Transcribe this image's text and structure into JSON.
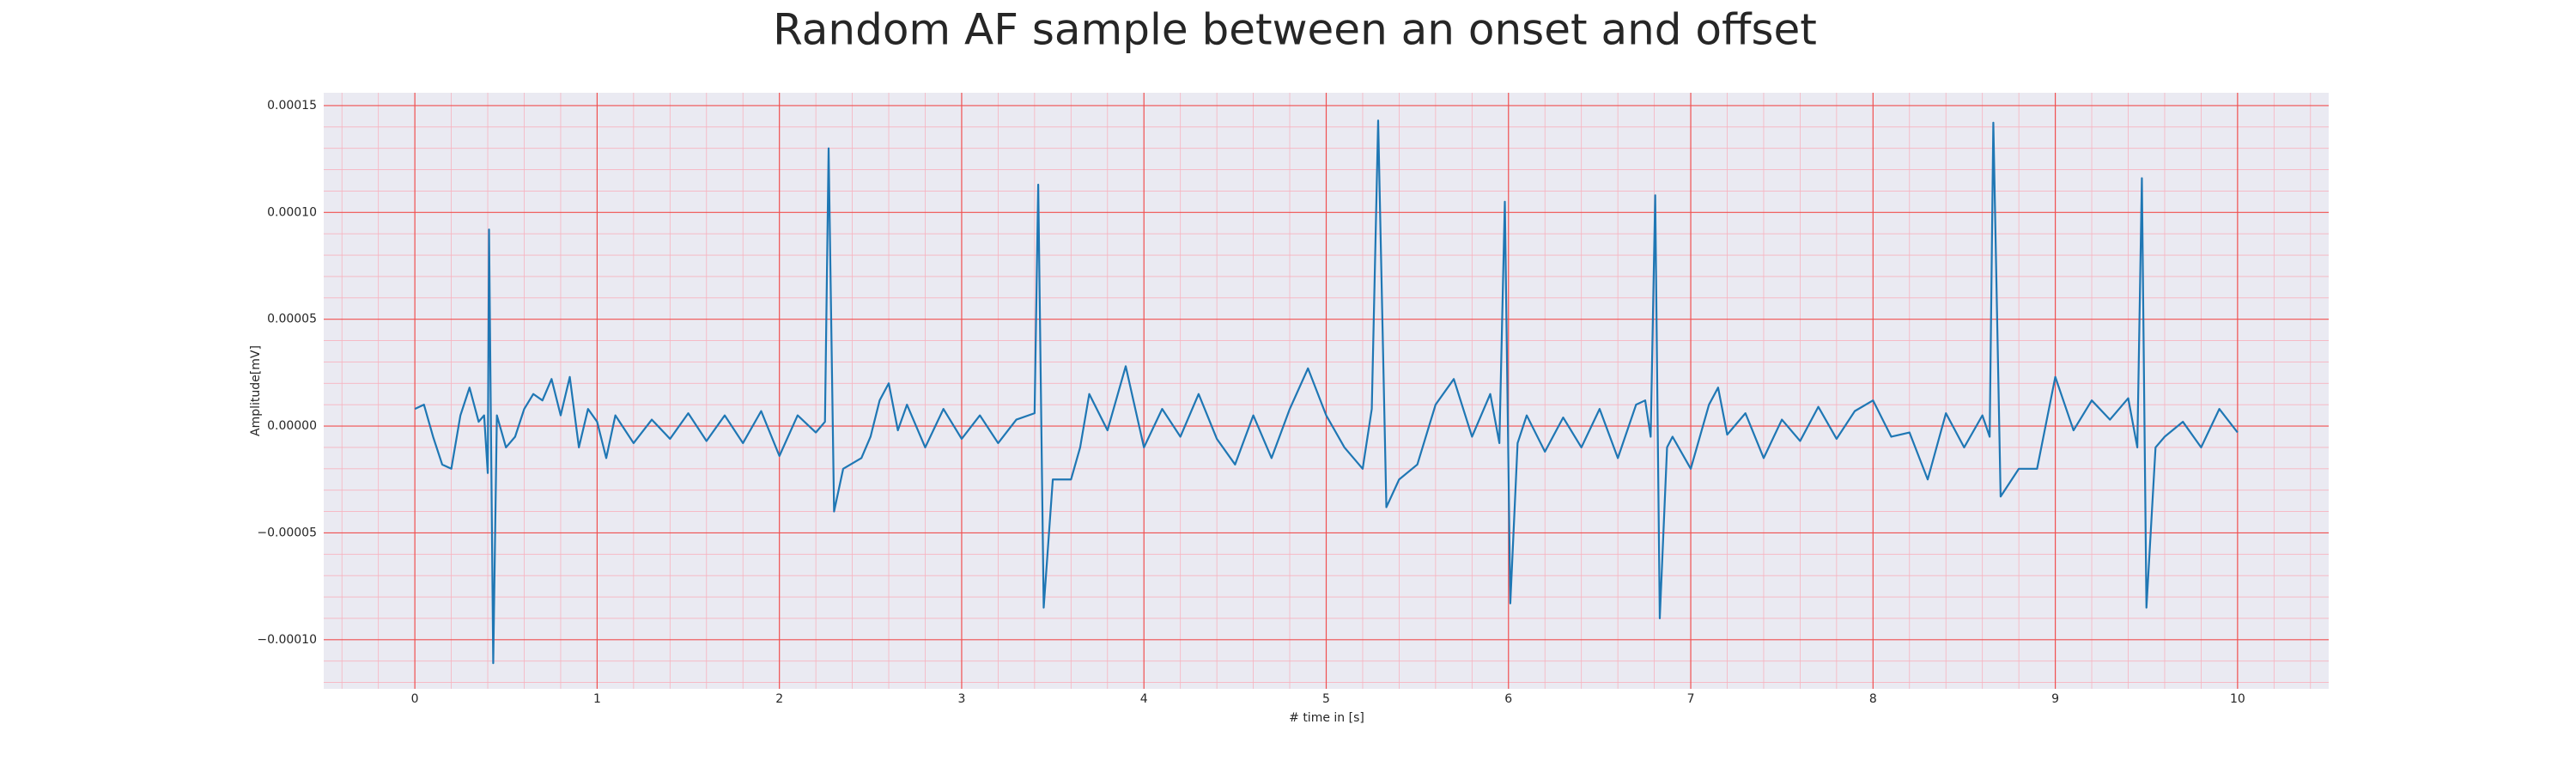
{
  "chart_data": {
    "type": "line",
    "title": "Random AF sample between an onset and offset",
    "x_label": "# time in [s]",
    "y_label": "Amplitude[mV]",
    "color": "#1f77b4",
    "background": "#eaeaf2",
    "grid": true,
    "grid_color": "#f05050",
    "minor_grid_color": "#f7b3bf",
    "xlim": [
      -0.5,
      10.5
    ],
    "ylim": [
      -0.000123,
      0.000156
    ],
    "xticks": [
      0,
      1,
      2,
      3,
      4,
      5,
      6,
      7,
      8,
      9,
      10
    ],
    "yticks": [
      {
        "value": -0.0001,
        "label": "−0.00010"
      },
      {
        "value": -5e-05,
        "label": "−0.00005"
      },
      {
        "value": 0,
        "label": "0.00000"
      },
      {
        "value": 5e-05,
        "label": "0.00005"
      },
      {
        "value": 0.0001,
        "label": "0.00010"
      },
      {
        "value": 0.00015,
        "label": "0.00015"
      }
    ],
    "xminorticks": [
      -0.4,
      -0.2,
      0.2,
      0.4,
      0.6,
      0.8,
      1.2,
      1.4,
      1.6,
      1.8,
      2.2,
      2.4,
      2.6,
      2.8,
      3.2,
      3.4,
      3.6,
      3.8,
      4.2,
      4.4,
      4.6,
      4.8,
      5.2,
      5.4,
      5.6,
      5.8,
      6.2,
      6.4,
      6.6,
      6.8,
      7.2,
      7.4,
      7.6,
      7.8,
      8.2,
      8.4,
      8.6,
      8.8,
      9.2,
      9.4,
      9.6,
      9.8,
      10.2,
      10.4
    ],
    "yminorticks": [
      -0.00012,
      -0.00011,
      -9e-05,
      -8e-05,
      -7e-05,
      -6e-05,
      -4e-05,
      -3e-05,
      -2e-05,
      -1e-05,
      1e-05,
      2e-05,
      3e-05,
      4e-05,
      6e-05,
      7e-05,
      8e-05,
      9e-05,
      0.00011,
      0.00012,
      0.00013,
      0.00014
    ],
    "x": [
      0,
      0.05,
      0.1,
      0.15,
      0.2,
      0.25,
      0.3,
      0.35,
      0.38,
      0.4,
      0.407,
      0.43,
      0.45,
      0.5,
      0.55,
      0.6,
      0.65,
      0.7,
      0.75,
      0.8,
      0.85,
      0.9,
      0.95,
      1.0,
      1.05,
      1.1,
      1.2,
      1.3,
      1.4,
      1.5,
      1.6,
      1.7,
      1.8,
      1.9,
      2.0,
      2.1,
      2.2,
      2.25,
      2.27,
      2.3,
      2.35,
      2.45,
      2.5,
      2.55,
      2.6,
      2.65,
      2.7,
      2.8,
      2.9,
      3.0,
      3.1,
      3.2,
      3.3,
      3.4,
      3.42,
      3.45,
      3.5,
      3.6,
      3.65,
      3.7,
      3.8,
      3.9,
      4.0,
      4.1,
      4.2,
      4.3,
      4.4,
      4.5,
      4.6,
      4.7,
      4.8,
      4.9,
      5.0,
      5.1,
      5.2,
      5.25,
      5.285,
      5.33,
      5.4,
      5.5,
      5.6,
      5.7,
      5.8,
      5.9,
      5.95,
      5.98,
      6.01,
      6.05,
      6.1,
      6.2,
      6.3,
      6.4,
      6.5,
      6.6,
      6.7,
      6.75,
      6.78,
      6.805,
      6.83,
      6.87,
      6.9,
      7.0,
      7.1,
      7.15,
      7.2,
      7.3,
      7.4,
      7.5,
      7.6,
      7.7,
      7.8,
      7.9,
      8.0,
      8.1,
      8.2,
      8.3,
      8.4,
      8.5,
      8.6,
      8.64,
      8.66,
      8.7,
      8.8,
      8.9,
      9.0,
      9.1,
      9.2,
      9.3,
      9.4,
      9.45,
      9.475,
      9.5,
      9.55,
      9.6,
      9.7,
      9.8,
      9.9,
      10.0
    ],
    "values": [
      8e-06,
      1e-05,
      -5e-06,
      -1.8e-05,
      -2e-05,
      5e-06,
      1.8e-05,
      2e-06,
      5e-06,
      -2.2e-05,
      9.2e-05,
      -0.000111,
      5e-06,
      -1e-05,
      -5e-06,
      8e-06,
      1.5e-05,
      1.2e-05,
      2.2e-05,
      5e-06,
      2.3e-05,
      -1e-05,
      8e-06,
      2e-06,
      -1.5e-05,
      5e-06,
      -8e-06,
      3e-06,
      -6e-06,
      6e-06,
      -7e-06,
      5e-06,
      -8e-06,
      7e-06,
      -1.4e-05,
      5e-06,
      -3e-06,
      2e-06,
      0.00013,
      -4e-05,
      -2e-05,
      -1.5e-05,
      -5e-06,
      1.2e-05,
      2e-05,
      -2e-06,
      1e-05,
      -1e-05,
      8e-06,
      -6e-06,
      5e-06,
      -8e-06,
      3e-06,
      6e-06,
      0.000113,
      -8.5e-05,
      -2.5e-05,
      -2.5e-05,
      -1e-05,
      1.5e-05,
      -2e-06,
      2.8e-05,
      -1e-05,
      8e-06,
      -5e-06,
      1.5e-05,
      -6e-06,
      -1.8e-05,
      5e-06,
      -1.5e-05,
      8e-06,
      2.7e-05,
      5e-06,
      -1e-05,
      -2e-05,
      8e-06,
      0.000143,
      -3.8e-05,
      -2.5e-05,
      -1.8e-05,
      1e-05,
      2.2e-05,
      -5e-06,
      1.5e-05,
      -8e-06,
      0.000105,
      -8.3e-05,
      -8e-06,
      5e-06,
      -1.2e-05,
      4e-06,
      -1e-05,
      8e-06,
      -1.5e-05,
      1e-05,
      1.2e-05,
      -5e-06,
      0.000108,
      -9e-05,
      -1e-05,
      -5e-06,
      -2e-05,
      1e-05,
      1.8e-05,
      -4e-06,
      6e-06,
      -1.5e-05,
      3e-06,
      -7e-06,
      9e-06,
      -6e-06,
      7e-06,
      1.2e-05,
      -5e-06,
      -3e-06,
      -2.5e-05,
      6e-06,
      -1e-05,
      5e-06,
      -5e-06,
      0.000142,
      -3.3e-05,
      -2e-05,
      -2e-05,
      2.3e-05,
      -2e-06,
      1.2e-05,
      3e-06,
      1.3e-05,
      -1e-05,
      0.000116,
      -8.5e-05,
      -1e-05,
      -5e-06,
      2e-06,
      -1e-05,
      8e-06,
      -3e-06
    ]
  }
}
